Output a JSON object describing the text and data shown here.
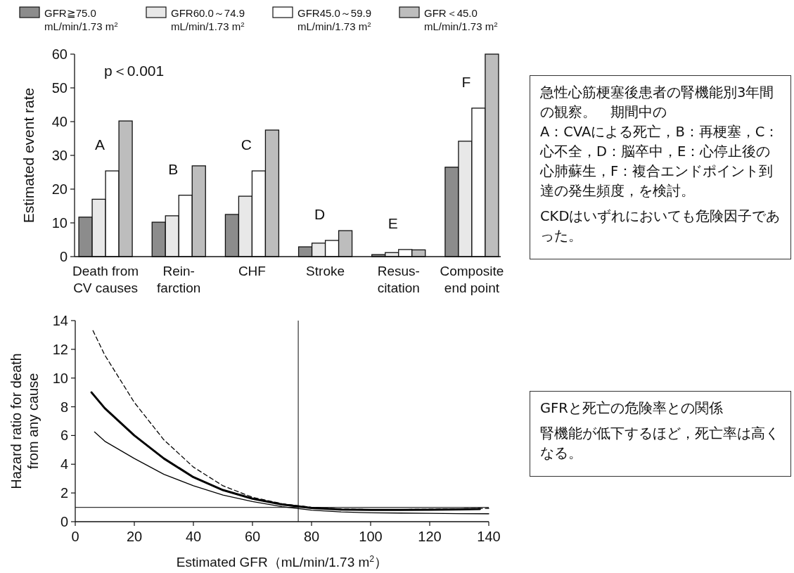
{
  "chart_data": [
    {
      "type": "bar",
      "ylabel": "Estimated event rate",
      "categories": [
        "Death from\nCV causes",
        "Rein-\nfarction",
        "CHF",
        "Stroke",
        "Resus-\ncitation",
        "Composite\nend point"
      ],
      "series": [
        {
          "name": "GFR≧75.0\nmL/min/1.73 m$^{2}$",
          "color": "#8c8c8c",
          "values": [
            11.7,
            10.2,
            12.5,
            2.9,
            0.6,
            26.5
          ]
        },
        {
          "name": "GFR60.0～74.9\nmL/min/1.73 m$^{2}$",
          "color": "#e8e8e8",
          "values": [
            17.0,
            12.1,
            17.9,
            4.0,
            1.2,
            34.2
          ]
        },
        {
          "name": "GFR45.0～59.9\nmL/min/1.73 m$^{2}$",
          "color": "#ffffff",
          "values": [
            25.4,
            18.2,
            25.4,
            4.8,
            2.1,
            44.0
          ]
        },
        {
          "name": "GFR＜45.0\nmL/min/1.73 m$^{2}$",
          "color": "#bdbdbd",
          "values": [
            40.2,
            26.9,
            37.5,
            7.7,
            2.0,
            60.0
          ]
        }
      ],
      "ylim": [
        0,
        60
      ],
      "yticks": [
        0,
        10,
        20,
        30,
        40,
        50,
        60
      ],
      "legend": "top",
      "annotations": [
        "p＜0.001",
        "A",
        "B",
        "C",
        "D",
        "E",
        "F"
      ]
    },
    {
      "type": "other",
      "annotations": [
        "急性心筋梗塞後患者の腎機能別3年間の観察。　期間中の",
        "A：CVAによる死亡，B：再梗塞，C：心不全，D：脳卒中，E：心停止後の心肺蘇生，F：複合エンドポイント到達の発生頻度，を検討。",
        "CKDはいずれにおいても危険因子であった。"
      ]
    },
    {
      "type": "line",
      "xlabel": "Estimated GFR（mL/min/1.73 m$^{2}$）",
      "ylabel": "Hazard ratio for death\nfrom any cause",
      "series": [
        {
          "color": "#000000",
          "x": [
            5.5,
            10,
            20,
            30,
            40,
            50,
            60,
            70,
            80,
            90,
            100,
            110,
            120,
            130,
            137
          ],
          "values": [
            9.0,
            7.9,
            6.0,
            4.4,
            3.1,
            2.2,
            1.6,
            1.2,
            0.95,
            0.85,
            0.82,
            0.82,
            0.83,
            0.86,
            0.88
          ]
        },
        {
          "color": "#000000",
          "line_style": "dashed",
          "x": [
            6,
            10,
            20,
            30,
            40,
            50,
            60,
            70,
            80,
            90,
            100,
            110,
            120,
            130,
            140
          ],
          "values": [
            13.3,
            11.6,
            8.3,
            5.7,
            3.8,
            2.5,
            1.7,
            1.25,
            1.0,
            0.88,
            0.85,
            0.85,
            0.87,
            0.9,
            0.93
          ]
        },
        {
          "color": "#000000",
          "x": [
            6.5,
            10,
            20,
            30,
            40,
            50,
            60,
            70,
            80,
            90,
            100,
            110,
            120,
            130,
            140
          ],
          "values": [
            6.25,
            5.6,
            4.4,
            3.3,
            2.5,
            1.85,
            1.4,
            1.05,
            0.8,
            0.68,
            0.62,
            0.6,
            0.58,
            0.56,
            0.55
          ]
        }
      ],
      "xlim": [
        0,
        140
      ],
      "xticks": [
        0,
        20,
        40,
        60,
        80,
        100,
        120,
        140
      ],
      "ylim": [
        0,
        14
      ],
      "yticks": [
        0,
        2,
        4,
        6,
        8,
        10,
        12,
        14
      ],
      "ref_lines": [
        {
          "axis": "y",
          "value": 1
        },
        {
          "axis": "x",
          "value": 75.5
        }
      ]
    },
    {
      "type": "other",
      "annotations": [
        "GFRと死亡の危険率との関係",
        "腎機能が低下するほど，死亡率は高くなる。"
      ]
    }
  ]
}
